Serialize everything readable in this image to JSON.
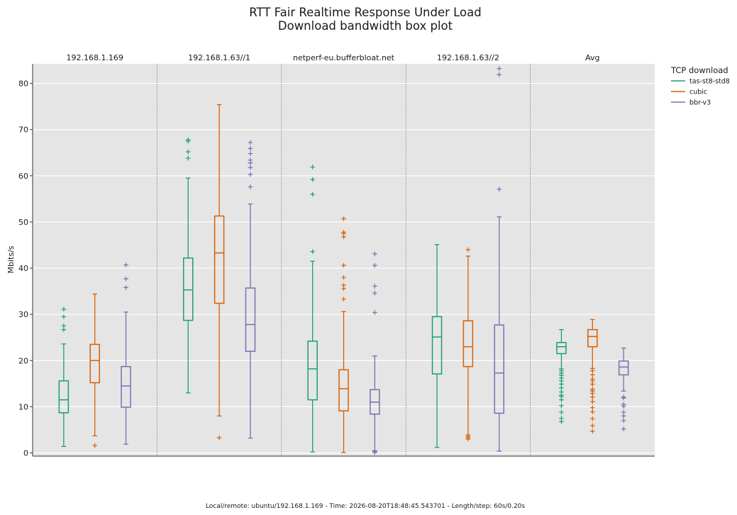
{
  "chart_data": {
    "type": "box",
    "title": "RTT Fair Realtime Response Under Load",
    "subtitle": "Download bandwidth box plot",
    "ylabel": "Mbits/s",
    "xlabel": "",
    "ylim": [
      -0.5,
      84
    ],
    "yticks": [
      0,
      10,
      20,
      30,
      40,
      50,
      60,
      70,
      80
    ],
    "grid": true,
    "legend": {
      "title": "TCP download",
      "placement": "right",
      "entries": [
        "tas-st8-std8",
        "cubic",
        "bbr-v3"
      ]
    },
    "series": [
      {
        "name": "tas-st8-std8",
        "color": "#1b9e77"
      },
      {
        "name": "cubic",
        "color": "#d95f02"
      },
      {
        "name": "bbr-v3",
        "color": "#7570b3"
      }
    ],
    "groups": [
      {
        "label": "192.168.1.169",
        "boxes": [
          {
            "whisker_low": 1.4,
            "q1": 8.7,
            "median": 11.5,
            "q3": 15.6,
            "whisker_high": 23.6,
            "outliers": [
              26.7,
              27.5,
              29.5,
              31.1
            ]
          },
          {
            "whisker_low": 3.7,
            "q1": 15.2,
            "median": 20.0,
            "q3": 23.5,
            "whisker_high": 34.4,
            "outliers": [
              1.6
            ]
          },
          {
            "whisker_low": 1.9,
            "q1": 9.9,
            "median": 14.5,
            "q3": 18.7,
            "whisker_high": 30.5,
            "outliers": [
              35.8,
              37.7,
              40.7
            ]
          }
        ]
      },
      {
        "label": "192.168.1.63//1",
        "boxes": [
          {
            "whisker_low": 13.0,
            "q1": 28.7,
            "median": 35.3,
            "q3": 42.2,
            "whisker_high": 59.5,
            "outliers": [
              63.8,
              65.2,
              67.5,
              67.8
            ]
          },
          {
            "whisker_low": 8.0,
            "q1": 32.4,
            "median": 43.3,
            "q3": 51.3,
            "whisker_high": 75.4,
            "outliers": [
              3.3
            ]
          },
          {
            "whisker_low": 3.2,
            "q1": 22.0,
            "median": 27.8,
            "q3": 35.7,
            "whisker_high": 53.9,
            "outliers": [
              57.6,
              60.3,
              61.8,
              62.8,
              63.4,
              64.8,
              65.9,
              67.2
            ]
          }
        ]
      },
      {
        "label": "netperf-eu.bufferbloat.net",
        "boxes": [
          {
            "whisker_low": 0.2,
            "q1": 11.5,
            "median": 18.2,
            "q3": 24.2,
            "whisker_high": 41.5,
            "outliers": [
              43.6,
              56.0,
              59.2,
              61.9
            ]
          },
          {
            "whisker_low": 0.1,
            "q1": 9.1,
            "median": 13.9,
            "q3": 18.0,
            "whisker_high": 30.6,
            "outliers": [
              33.3,
              35.6,
              36.3,
              38.0,
              40.6,
              46.8,
              47.5,
              47.8,
              50.7
            ]
          },
          {
            "whisker_low": 0.5,
            "q1": 8.4,
            "median": 11.0,
            "q3": 13.7,
            "whisker_high": 21.0,
            "outliers": [
              0.1,
              0.3,
              30.4,
              34.6,
              36.1,
              40.6,
              43.1
            ]
          }
        ]
      },
      {
        "label": "192.168.1.63//2",
        "boxes": [
          {
            "whisker_low": 1.2,
            "q1": 17.1,
            "median": 25.1,
            "q3": 29.5,
            "whisker_high": 45.1,
            "outliers": []
          },
          {
            "whisker_low": 3.9,
            "q1": 18.7,
            "median": 23.0,
            "q3": 28.6,
            "whisker_high": 42.6,
            "outliers": [
              3.0,
              3.3,
              3.6,
              44.0
            ]
          },
          {
            "whisker_low": 0.4,
            "q1": 8.6,
            "median": 17.3,
            "q3": 27.7,
            "whisker_high": 51.1,
            "outliers": [
              57.1,
              81.9,
              83.2
            ]
          }
        ]
      },
      {
        "label": "Avg",
        "boxes": [
          {
            "whisker_low": 18.2,
            "q1": 21.5,
            "median": 23.0,
            "q3": 23.9,
            "whisker_high": 26.7,
            "outliers": [
              6.8,
              7.5,
              8.8,
              10.2,
              11.5,
              12.2,
              12.5,
              13.2,
              14.1,
              14.9,
              15.6,
              16.2,
              16.8,
              17.3,
              17.8
            ]
          },
          {
            "whisker_low": 18.3,
            "q1": 23.0,
            "median": 25.2,
            "q3": 26.7,
            "whisker_high": 28.9,
            "outliers": [
              4.7,
              5.9,
              7.4,
              8.9,
              9.8,
              11.1,
              12.1,
              12.9,
              13.4,
              13.8,
              14.9,
              15.6,
              16.0,
              16.9,
              17.8
            ]
          },
          {
            "whisker_low": 13.4,
            "q1": 16.9,
            "median": 18.6,
            "q3": 19.9,
            "whisker_high": 22.7,
            "outliers": [
              5.2,
              7.0,
              8.0,
              8.8,
              10.1,
              10.5,
              11.9,
              12.1
            ]
          }
        ]
      }
    ],
    "footer": "Local/remote: ubuntu/192.168.1.169 - Time: 2026-08-20T18:48:45.543701 - Length/step: 60s/0.20s"
  }
}
